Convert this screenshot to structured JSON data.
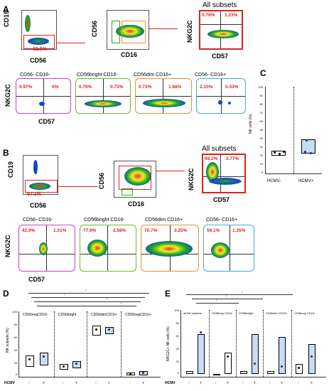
{
  "panels": {
    "A": {
      "letter": "A",
      "cd19": "CD19",
      "cd56": "CD56",
      "gate_pct": "62.5%",
      "cd56_b": "CD56",
      "cd16": "CD16",
      "all_subsets": "All subsets",
      "nkg2c": "NKG2C",
      "cd57": "CD57",
      "pct_ul": "0.76%",
      "pct_ur": "1.23%",
      "sub1": "CD56- CD16-",
      "sub2": "CD56bright CD16-",
      "sub3": "CD56dim CD16+",
      "sub4": "CD56- CD16+",
      "q1": [
        "0.97%",
        "0%"
      ],
      "q2": [
        "0.70%",
        "0.73%"
      ],
      "q3": [
        "0.73%",
        "1.68%"
      ],
      "q4": [
        "2.15%",
        "0.43%"
      ],
      "nkg2c_row": "NKG2C",
      "cd57_row": "CD57"
    },
    "B": {
      "letter": "B",
      "cd19": "CD19",
      "cd56": "CD56",
      "gate_pct": "97.1%",
      "cd56_b": "CD56",
      "cd16": "CD16",
      "all_subsets": "All subsets",
      "nkg2c": "NKG2C",
      "cd57": "CD57",
      "pct_ul": "69.2%",
      "pct_ur": "2.77%",
      "sub1": "CD56- CD16-",
      "sub2": "CD56bright CD16-",
      "sub3": "CD56dim CD16+",
      "sub4": "CD56- CD16+",
      "q1": [
        "42.9%",
        "1.51%"
      ],
      "q2": [
        "77.9%",
        "2.58%"
      ],
      "q3": [
        "70.7%",
        "3.25%"
      ],
      "q4": [
        "59.1%",
        "1.35%"
      ],
      "nkg2c_row": "NKG2C",
      "cd57_row": "CD57"
    },
    "C": {
      "letter": "C",
      "ylabel": "NK cells (%)",
      "yticks": [
        "100",
        "90",
        "80",
        "70",
        "60",
        "50",
        "40",
        "30",
        "20",
        "10",
        "0"
      ],
      "xcats": [
        "HCMV-",
        "HCMV+"
      ]
    },
    "D": {
      "letter": "D",
      "ylabel": "NK subsets (%)",
      "yticks": [
        "100",
        "80",
        "60",
        "40",
        "20",
        "0"
      ],
      "groups": [
        "CD56negCD16-",
        "CD56bright",
        "CD56dimCD16+",
        "CD56negCD16+"
      ],
      "xrow_label": "HCMV",
      "signs": [
        "-",
        "+",
        "-",
        "+",
        "-",
        "+",
        "-",
        "+"
      ],
      "star": "*"
    },
    "E": {
      "letter": "E",
      "ylabel": "NKG2C+ NK cells (%)",
      "yticks": [
        "100",
        "80",
        "60",
        "40",
        "20",
        "0"
      ],
      "groups": [
        "all NK subsets",
        "CD56neg CD16-",
        "CD56bright",
        "CD56dim CD16+",
        "CD56neg CD16-"
      ],
      "xrow_label": "HCMV",
      "signs": [
        "-",
        "+",
        "-",
        "+",
        "-",
        "+",
        "-",
        "+",
        "-",
        "+"
      ],
      "star": "*"
    }
  },
  "colors": {
    "red": "#dd2222",
    "light_blue": "#c7dcf5",
    "quad_magenta": "#cc44bb",
    "quad_green": "#66bb33",
    "quad_orange": "#e8913a",
    "quad_cyan": "#44aacc"
  },
  "chart_data": [
    {
      "type": "box",
      "panel": "C",
      "ylabel": "NK cells (%)",
      "ylim": [
        0,
        100
      ],
      "categories": [
        "HCMV-",
        "HCMV+"
      ],
      "series": [
        {
          "name": "HCMV-",
          "values": [
            24,
            26,
            28,
            27
          ]
        },
        {
          "name": "HCMV+",
          "values": [
            15,
            17,
            20,
            40
          ]
        }
      ]
    },
    {
      "type": "box",
      "panel": "D",
      "ylabel": "NK subsets (%)",
      "ylim": [
        0,
        100
      ],
      "categories": [
        "CD56negCD16- -",
        "CD56negCD16- +",
        "CD56bright -",
        "CD56bright +",
        "CD56dimCD16+ -",
        "CD56dimCD16+ +",
        "CD56negCD16+ -",
        "CD56negCD16+ +"
      ],
      "values": [
        20,
        22,
        10,
        13,
        60,
        59,
        3,
        5
      ]
    },
    {
      "type": "box",
      "panel": "E",
      "ylabel": "NKG2C+ NK cells (%)",
      "ylim": [
        0,
        100
      ],
      "categories": [
        "all NK -",
        "all NK +",
        "CD56neg CD16- -",
        "CD56neg CD16- +",
        "CD56bright -",
        "CD56bright +",
        "CD56dim CD16+ -",
        "CD56dim CD16+ +",
        "CD56neg CD16- -",
        "CD56neg CD16- +"
      ],
      "values": [
        4,
        5,
        1,
        12,
        4,
        8,
        3,
        6,
        10,
        15
      ]
    }
  ]
}
